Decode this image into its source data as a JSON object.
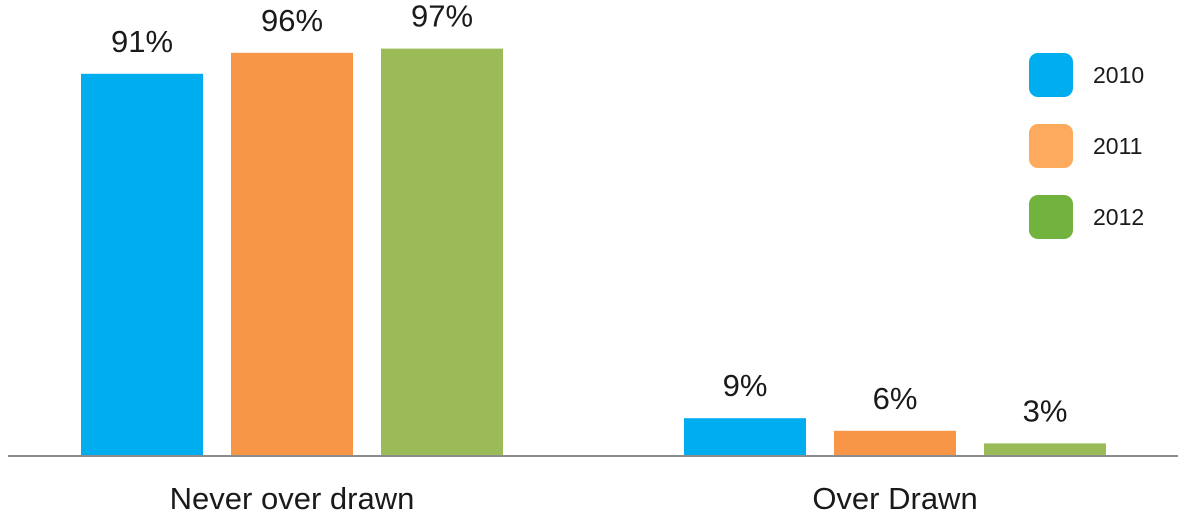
{
  "chart_data": {
    "type": "bar",
    "categories": [
      "Never over drawn",
      "Over Drawn"
    ],
    "series": [
      {
        "name": "2010",
        "values": [
          91,
          9
        ],
        "labels": [
          "91%",
          "9%"
        ],
        "color": "#00AEEF",
        "legend_color": "#00AEEF"
      },
      {
        "name": "2011",
        "values": [
          96,
          6
        ],
        "labels": [
          "96%",
          "6%"
        ],
        "color": "#F79646",
        "legend_color": "#FBAA5E"
      },
      {
        "name": "2012",
        "values": [
          97,
          3
        ],
        "labels": [
          "97%",
          "3%"
        ],
        "color": "#9BBB59",
        "legend_color": "#72B340"
      }
    ],
    "ylim": [
      0,
      100
    ],
    "grid": false,
    "legend_position": "top-right",
    "title": "",
    "xlabel": "",
    "ylabel": ""
  }
}
